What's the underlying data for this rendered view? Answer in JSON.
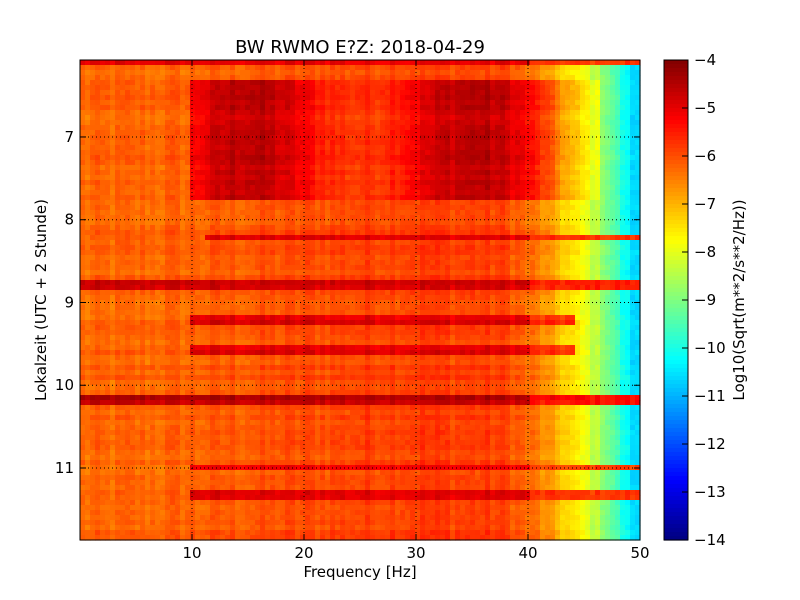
{
  "chart_data": {
    "type": "heatmap",
    "title": "BW RWMO E?Z: 2018-04-29",
    "xlabel": "Frequency [Hz]",
    "ylabel": "Lokalzeit (UTC + 2 Stunde)",
    "xlim": [
      0,
      50
    ],
    "ylim": [
      6.07,
      11.87
    ],
    "y_inverted": true,
    "x_ticks": [
      10,
      20,
      30,
      40,
      50
    ],
    "y_ticks": [
      7,
      8,
      9,
      10,
      11
    ],
    "grid": true,
    "colormap": "jet",
    "colorbar": {
      "label": "Log10(Sqrt(m**2/s**2/Hz))",
      "range": [
        -14,
        -4
      ],
      "ticks": [
        -4,
        -5,
        -6,
        -7,
        -8,
        -9,
        -10,
        -11,
        -12,
        -13,
        -14
      ]
    },
    "background_profile": {
      "frequency": [
        0,
        10,
        20,
        30,
        38,
        41,
        43,
        45,
        47,
        49,
        50
      ],
      "log_amplitude": [
        -6.3,
        -6.2,
        -6.0,
        -5.8,
        -5.9,
        -6.5,
        -7.2,
        -7.9,
        -8.9,
        -10.4,
        -10.8
      ]
    },
    "activity_window": {
      "start": 6.3,
      "end": 7.78,
      "freq_range": [
        10,
        46.5
      ],
      "peak_log_amplitude": -4.6
    },
    "strong_lines": [
      {
        "time": 6.1,
        "freq_range": [
          0,
          50
        ],
        "log_amplitude": -5.0
      },
      {
        "time": 8.2,
        "freq_range": [
          11,
          50
        ],
        "log_amplitude": -5.0
      },
      {
        "time": 8.8,
        "freq_range": [
          0,
          50
        ],
        "log_amplitude": -4.7
      },
      {
        "time": 9.2,
        "freq_range": [
          10,
          44
        ],
        "log_amplitude": -4.9
      },
      {
        "time": 9.58,
        "freq_range": [
          10,
          44
        ],
        "log_amplitude": -5.0
      },
      {
        "time": 10.18,
        "freq_range": [
          0,
          50
        ],
        "log_amplitude": -4.6
      },
      {
        "time": 11.0,
        "freq_range": [
          10,
          50
        ],
        "log_amplitude": -5.0
      },
      {
        "time": 11.32,
        "freq_range": [
          10,
          50
        ],
        "log_amplitude": -5.0
      }
    ]
  }
}
